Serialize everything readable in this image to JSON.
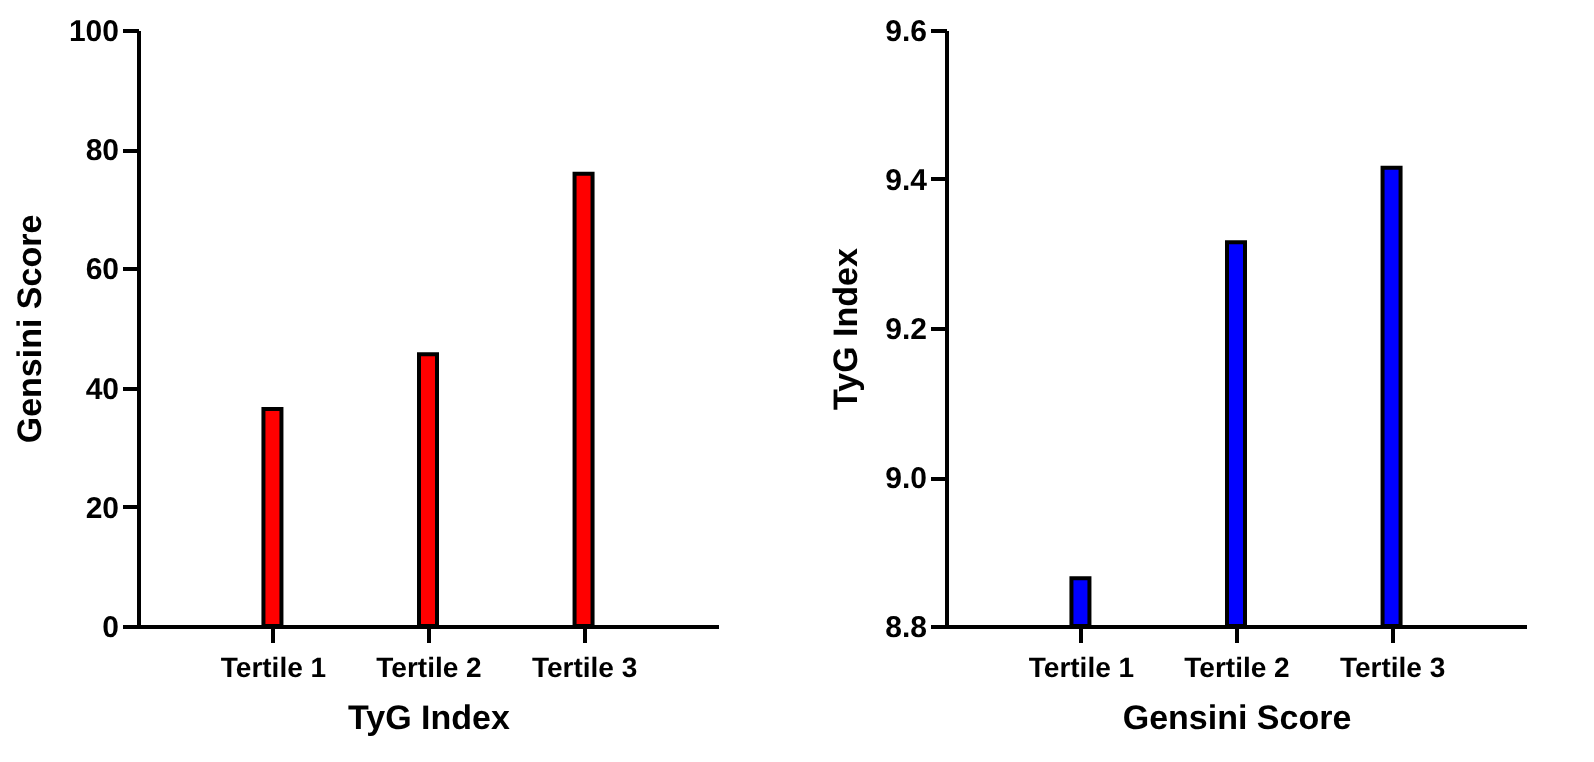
{
  "chart_data": [
    {
      "type": "bar",
      "xlabel": "TyG Index",
      "ylabel": "Gensini Score",
      "categories": [
        "Tertile 1",
        "Tertile 2",
        "Tertile 3"
      ],
      "values": [
        36.4,
        45.6,
        75.9
      ],
      "color": "#ff0000",
      "ylim": [
        0,
        100
      ],
      "yticks": [
        0,
        20,
        40,
        60,
        80,
        100
      ],
      "grid": false
    },
    {
      "type": "bar",
      "xlabel": "Gensini Score",
      "ylabel": "TyG Index",
      "categories": [
        "Tertile 1",
        "Tertile 2",
        "Tertile 3"
      ],
      "values": [
        8.864,
        9.315,
        9.415
      ],
      "color": "#0000ff",
      "ylim": [
        8.8,
        9.6
      ],
      "yticks": [
        {
          "value": 8.8,
          "label": "8.8"
        },
        {
          "value": 9.0,
          "label": "9.0"
        },
        {
          "value": 9.2,
          "label": "9.2"
        },
        {
          "value": 9.4,
          "label": "9.4"
        },
        {
          "value": 9.6,
          "label": "9.6"
        }
      ],
      "grid": false
    }
  ]
}
